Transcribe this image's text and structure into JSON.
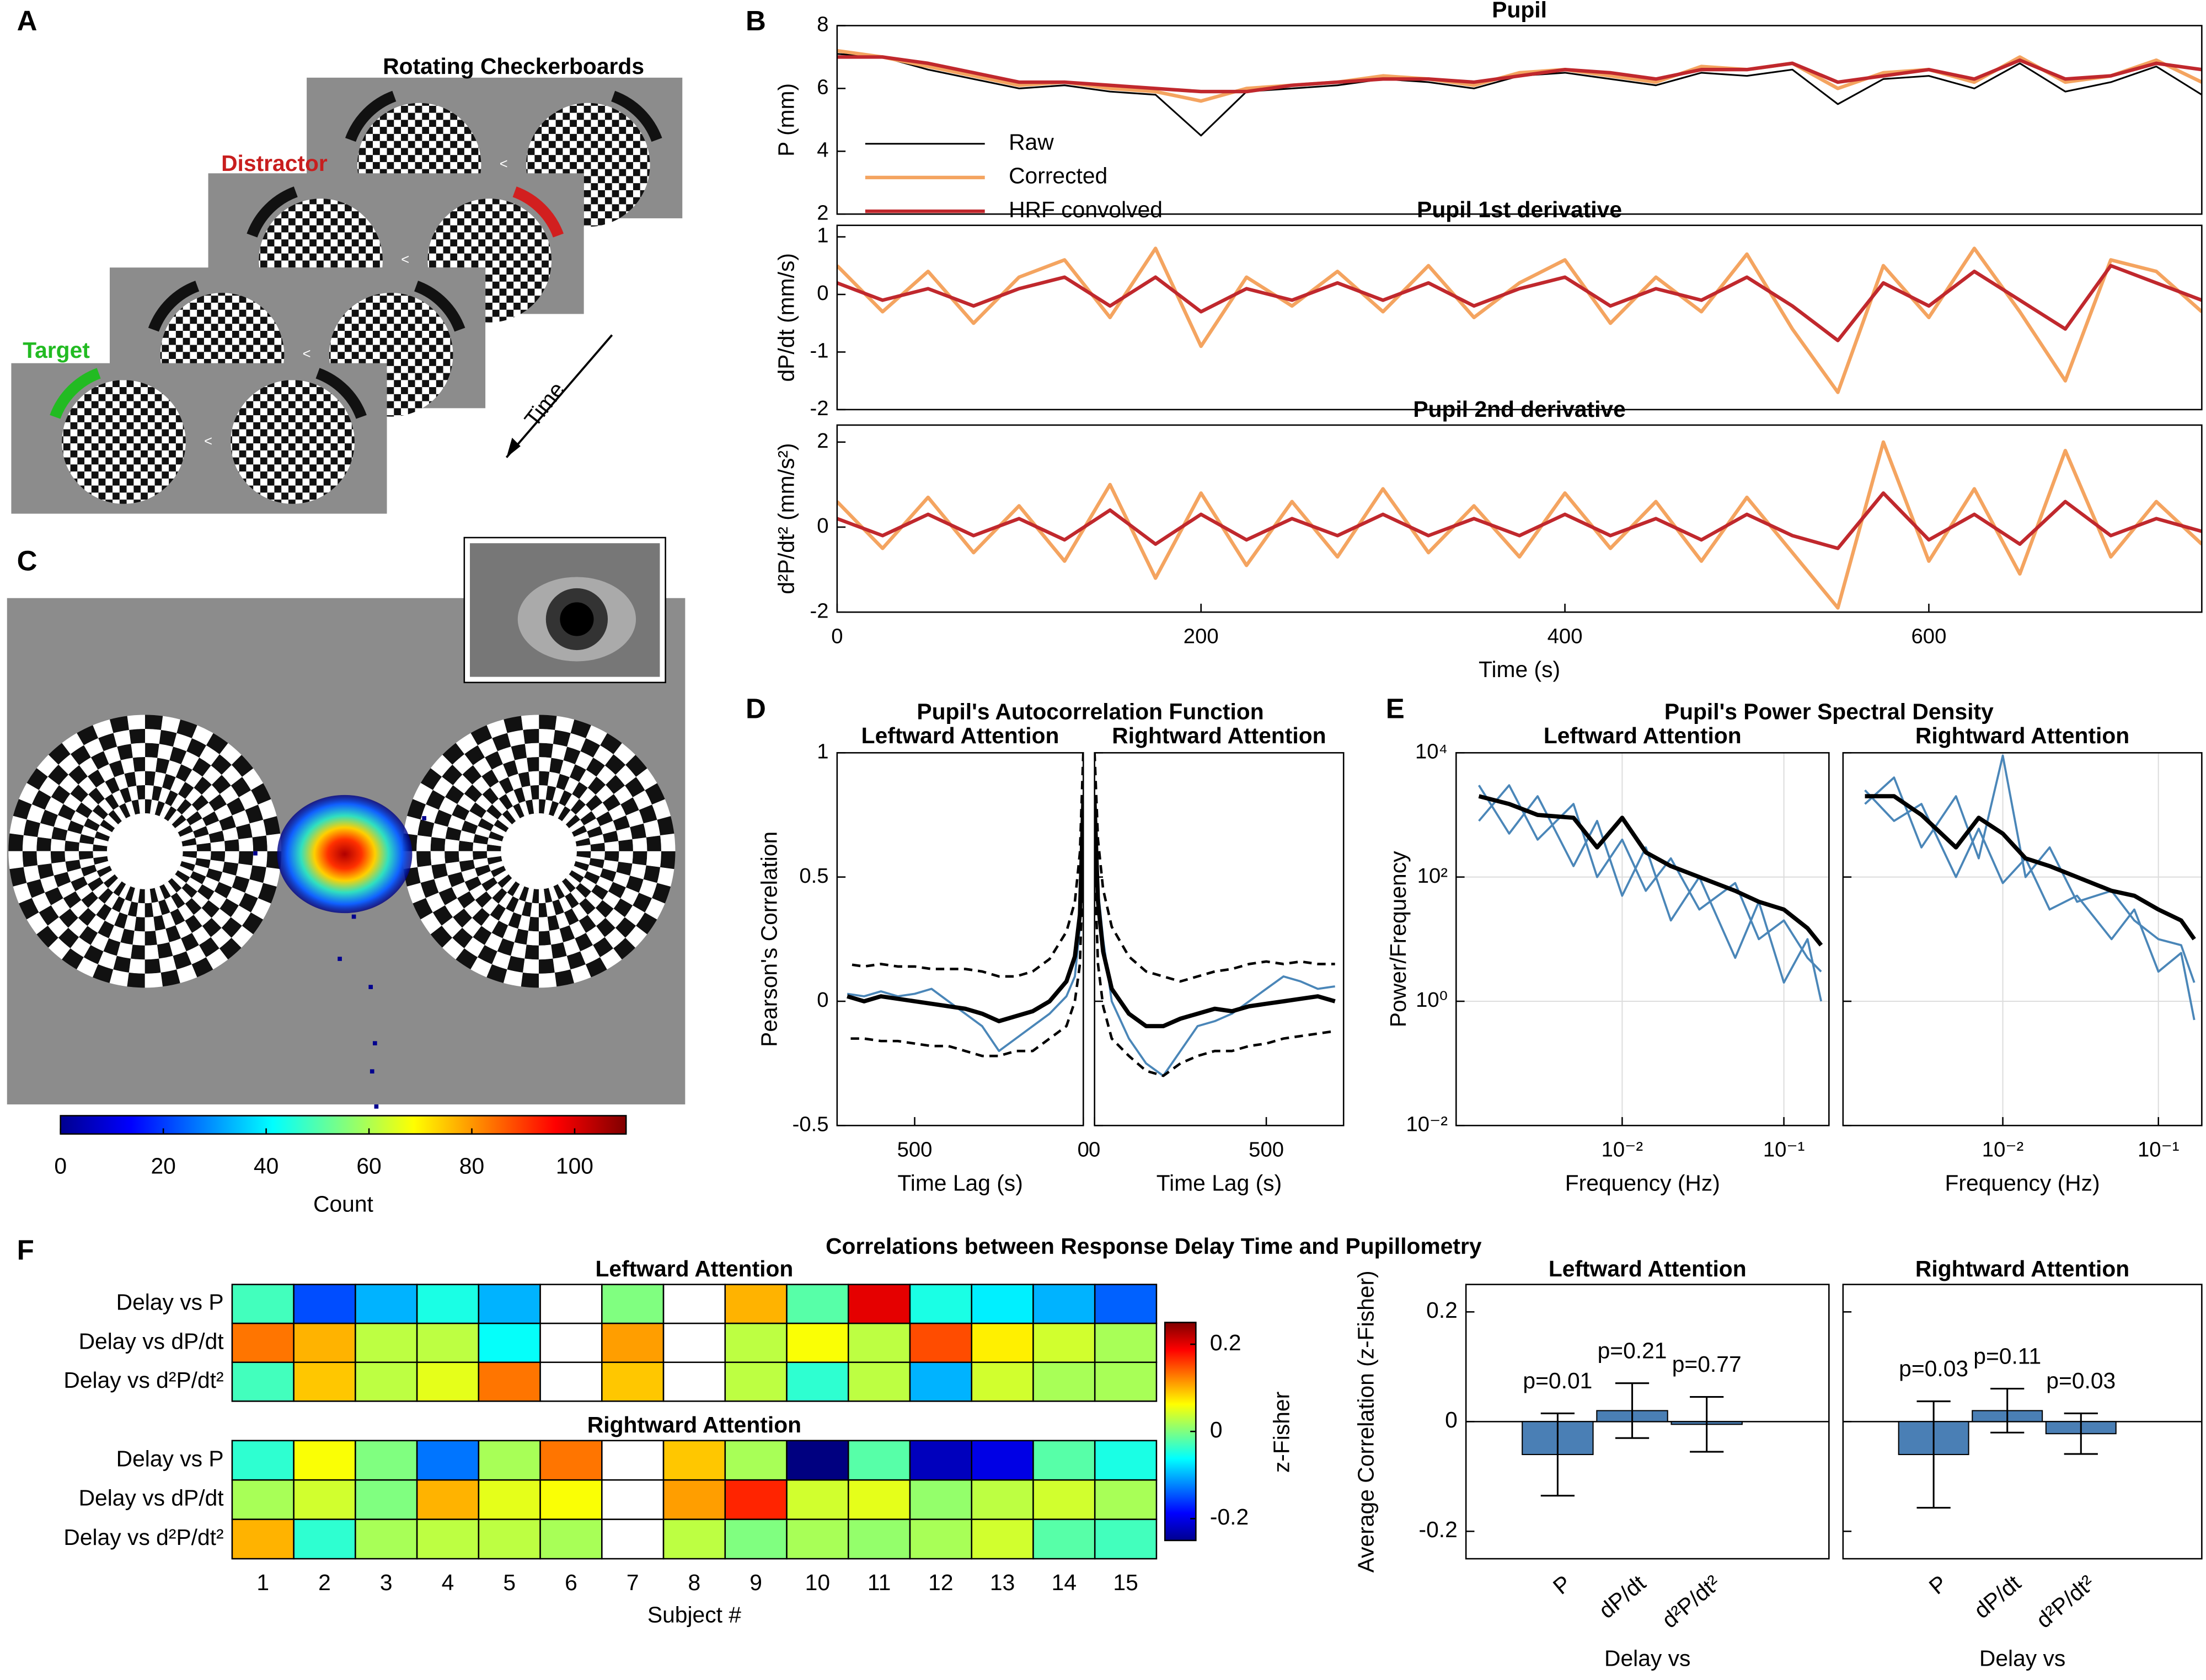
{
  "panel_labels": [
    "A",
    "B",
    "C",
    "D",
    "E",
    "F"
  ],
  "panel_a": {
    "title": "Rotating Checkerboards",
    "distractor": "Distractor",
    "target": "Target",
    "time": "Time"
  },
  "panel_f_title": "Correlations between Response Delay Time and Pupillometry",
  "chart_data": [
    {
      "type": "line",
      "title": "Pupil",
      "ylabel": "P (mm)",
      "xlim": [
        0,
        750
      ],
      "ylim": [
        2,
        8
      ],
      "yticks": [
        2,
        4,
        6,
        8
      ],
      "legend": "lower left",
      "x": [
        0,
        25,
        50,
        75,
        100,
        125,
        150,
        175,
        200,
        225,
        250,
        275,
        300,
        325,
        350,
        375,
        400,
        425,
        450,
        475,
        500,
        525,
        550,
        575,
        600,
        625,
        650,
        675,
        700,
        725,
        750
      ],
      "series": [
        {
          "name": "Raw",
          "color": "#000000",
          "linewidth": 1.2,
          "values": [
            7.1,
            7.0,
            6.6,
            6.3,
            6.0,
            6.1,
            5.9,
            5.8,
            4.5,
            5.9,
            6.0,
            6.1,
            6.3,
            6.2,
            6.0,
            6.4,
            6.5,
            6.3,
            6.1,
            6.5,
            6.4,
            6.6,
            5.5,
            6.3,
            6.4,
            6.0,
            6.8,
            5.9,
            6.2,
            6.7,
            5.8
          ]
        },
        {
          "name": "Corrected",
          "color": "#f4a460",
          "linewidth": 2.5,
          "values": [
            7.2,
            7.0,
            6.7,
            6.4,
            6.1,
            6.2,
            6.0,
            5.9,
            5.6,
            6.0,
            6.1,
            6.2,
            6.4,
            6.3,
            6.1,
            6.5,
            6.6,
            6.4,
            6.2,
            6.7,
            6.6,
            6.8,
            6.0,
            6.5,
            6.6,
            6.2,
            7.0,
            6.2,
            6.4,
            6.9,
            6.2
          ]
        },
        {
          "name": "HRF convolved",
          "color": "#c0282d",
          "linewidth": 2.5,
          "values": [
            7.0,
            7.0,
            6.8,
            6.5,
            6.2,
            6.2,
            6.1,
            6.0,
            5.9,
            5.9,
            6.1,
            6.2,
            6.3,
            6.3,
            6.2,
            6.4,
            6.6,
            6.5,
            6.3,
            6.6,
            6.6,
            6.8,
            6.2,
            6.4,
            6.6,
            6.3,
            6.9,
            6.3,
            6.4,
            6.8,
            6.6
          ]
        }
      ]
    },
    {
      "type": "line",
      "title": "Pupil 1st derivative",
      "ylabel": "dP/dt (mm/s)",
      "xlim": [
        0,
        750
      ],
      "ylim": [
        -2,
        1.2
      ],
      "yticks": [
        -2,
        -1,
        0,
        1
      ],
      "x": [
        0,
        25,
        50,
        75,
        100,
        125,
        150,
        175,
        200,
        225,
        250,
        275,
        300,
        325,
        350,
        375,
        400,
        425,
        450,
        475,
        500,
        525,
        550,
        575,
        600,
        625,
        650,
        675,
        700,
        725,
        750
      ],
      "series": [
        {
          "color": "#f4a460",
          "linewidth": 2.5,
          "values": [
            0.5,
            -0.3,
            0.4,
            -0.5,
            0.3,
            0.6,
            -0.4,
            0.8,
            -0.9,
            0.3,
            -0.2,
            0.4,
            -0.3,
            0.5,
            -0.4,
            0.2,
            0.6,
            -0.5,
            0.3,
            -0.3,
            0.7,
            -0.6,
            -1.7,
            0.5,
            -0.4,
            0.8,
            -0.3,
            -1.5,
            0.6,
            0.4,
            -0.3
          ]
        },
        {
          "color": "#c0282d",
          "linewidth": 2.5,
          "values": [
            0.2,
            -0.1,
            0.1,
            -0.2,
            0.1,
            0.3,
            -0.2,
            0.3,
            -0.3,
            0.1,
            -0.1,
            0.2,
            -0.1,
            0.2,
            -0.2,
            0.1,
            0.3,
            -0.2,
            0.1,
            -0.1,
            0.3,
            -0.2,
            -0.8,
            0.2,
            -0.2,
            0.4,
            -0.1,
            -0.6,
            0.5,
            0.2,
            -0.1
          ]
        }
      ]
    },
    {
      "type": "line",
      "title": "Pupil 2nd derivative",
      "ylabel": "d²P/dt² (mm/s²)",
      "xlabel": "Time (s)",
      "xlim": [
        0,
        750
      ],
      "ylim": [
        -2,
        2.4
      ],
      "yticks": [
        -2,
        0,
        2
      ],
      "xticks": [
        0,
        200,
        400,
        600
      ],
      "x": [
        0,
        25,
        50,
        75,
        100,
        125,
        150,
        175,
        200,
        225,
        250,
        275,
        300,
        325,
        350,
        375,
        400,
        425,
        450,
        475,
        500,
        525,
        550,
        575,
        600,
        625,
        650,
        675,
        700,
        725,
        750
      ],
      "series": [
        {
          "color": "#f4a460",
          "linewidth": 2.5,
          "values": [
            0.6,
            -0.5,
            0.7,
            -0.6,
            0.5,
            -0.8,
            1.0,
            -1.2,
            0.8,
            -0.9,
            0.6,
            -0.7,
            0.9,
            -0.6,
            0.5,
            -0.7,
            0.8,
            -0.5,
            0.6,
            -0.8,
            0.7,
            -0.6,
            -1.9,
            2.0,
            -0.8,
            0.9,
            -1.1,
            1.8,
            -0.7,
            0.6,
            -0.4
          ]
        },
        {
          "color": "#c0282d",
          "linewidth": 2.5,
          "values": [
            0.2,
            -0.2,
            0.3,
            -0.2,
            0.2,
            -0.3,
            0.4,
            -0.4,
            0.3,
            -0.3,
            0.2,
            -0.2,
            0.3,
            -0.2,
            0.2,
            -0.2,
            0.3,
            -0.2,
            0.2,
            -0.3,
            0.3,
            -0.2,
            -0.5,
            0.8,
            -0.3,
            0.3,
            -0.4,
            0.6,
            -0.2,
            0.2,
            -0.1
          ]
        }
      ]
    },
    {
      "type": "line",
      "title": "Pupil's Autocorrelation Function",
      "subtitle": "Leftward Attention",
      "ylabel": "Pearson's Correlation",
      "xlabel": "Time Lag (s)",
      "xlim": [
        730,
        0
      ],
      "ylim": [
        -0.5,
        1
      ],
      "yticks": [
        -0.5,
        0,
        0.5,
        1
      ],
      "xticks": [
        500,
        0
      ],
      "x": [
        0,
        10,
        25,
        50,
        100,
        150,
        200,
        250,
        300,
        350,
        400,
        450,
        500,
        550,
        600,
        650,
        700
      ],
      "series": [
        {
          "color": "#4a86b8",
          "linewidth": 1.5,
          "values": [
            0.7,
            0.3,
            0.1,
            0.02,
            -0.05,
            -0.1,
            -0.15,
            -0.2,
            -0.1,
            -0.05,
            0.0,
            0.05,
            0.03,
            0.02,
            0.04,
            0.02,
            0.03
          ]
        },
        {
          "color": "#000000",
          "linewidth": 1.8,
          "linestyle": "dashed",
          "values": [
            1,
            0.6,
            0.4,
            0.28,
            0.17,
            0.12,
            0.1,
            0.1,
            0.12,
            0.13,
            0.13,
            0.13,
            0.14,
            0.14,
            0.15,
            0.14,
            0.15
          ]
        },
        {
          "color": "#000000",
          "linewidth": 1.8,
          "linestyle": "dashed",
          "values": [
            0.6,
            0.15,
            0.0,
            -0.1,
            -0.15,
            -0.2,
            -0.2,
            -0.22,
            -0.22,
            -0.2,
            -0.18,
            -0.18,
            -0.17,
            -0.16,
            -0.16,
            -0.15,
            -0.15
          ]
        },
        {
          "color": "#000000",
          "linewidth": 3,
          "values": [
            0.8,
            0.35,
            0.18,
            0.08,
            0.0,
            -0.04,
            -0.06,
            -0.08,
            -0.05,
            -0.03,
            -0.02,
            -0.01,
            0.0,
            0.01,
            0.02,
            0.0,
            0.02
          ]
        }
      ]
    },
    {
      "type": "line",
      "subtitle": "Rightward Attention",
      "xlabel": "Time Lag (s)",
      "xlim": [
        0,
        725
      ],
      "ylim": [
        -0.5,
        1
      ],
      "yticks": [
        -0.5,
        0,
        0.5,
        1
      ],
      "xticks": [
        0,
        500
      ],
      "x": [
        0,
        10,
        25,
        50,
        100,
        150,
        200,
        250,
        300,
        350,
        400,
        450,
        500,
        550,
        600,
        650,
        700
      ],
      "series": [
        {
          "color": "#4a86b8",
          "linewidth": 1.5,
          "values": [
            0.75,
            0.45,
            0.25,
            0.0,
            -0.15,
            -0.25,
            -0.3,
            -0.2,
            -0.1,
            -0.08,
            -0.05,
            0.0,
            0.05,
            0.1,
            0.08,
            0.05,
            0.06
          ]
        },
        {
          "color": "#000000",
          "linewidth": 1.8,
          "linestyle": "dashed",
          "values": [
            1,
            0.65,
            0.45,
            0.3,
            0.18,
            0.12,
            0.1,
            0.08,
            0.1,
            0.12,
            0.13,
            0.15,
            0.16,
            0.15,
            0.16,
            0.15,
            0.15
          ]
        },
        {
          "color": "#000000",
          "linewidth": 1.8,
          "linestyle": "dashed",
          "values": [
            0.55,
            0.15,
            -0.02,
            -0.15,
            -0.22,
            -0.28,
            -0.3,
            -0.25,
            -0.22,
            -0.2,
            -0.2,
            -0.18,
            -0.17,
            -0.15,
            -0.14,
            -0.13,
            -0.12
          ]
        },
        {
          "color": "#000000",
          "linewidth": 3,
          "values": [
            0.8,
            0.4,
            0.2,
            0.05,
            -0.05,
            -0.1,
            -0.1,
            -0.07,
            -0.05,
            -0.03,
            -0.04,
            -0.02,
            -0.01,
            0.0,
            0.01,
            0.02,
            0.0
          ]
        }
      ]
    },
    {
      "type": "line",
      "title": "Pupil's Power Spectral Density",
      "subtitle": "Leftward Attention",
      "ylabel": "Power/Frequency",
      "xlabel": "Frequency (Hz)",
      "xlog": true,
      "ylog": true,
      "grid": true,
      "xlim": [
        0.00094,
        0.19
      ],
      "ylim": [
        0.01,
        10000
      ],
      "xticks": [
        {
          "value": 0.01,
          "label": "10⁻²"
        },
        {
          "value": 0.1,
          "label": "10⁻¹"
        }
      ],
      "yticks": [
        {
          "value": 0.01,
          "label": "10⁻²"
        },
        {
          "value": 1,
          "label": "10⁰"
        },
        {
          "value": 100,
          "label": "10²"
        },
        {
          "value": 10000,
          "label": "10⁴"
        }
      ],
      "x": [
        0.0013,
        0.002,
        0.003,
        0.005,
        0.007,
        0.01,
        0.014,
        0.02,
        0.03,
        0.05,
        0.07,
        0.1,
        0.14,
        0.17
      ],
      "series": [
        {
          "color": "#4a86b8",
          "linewidth": 1.5,
          "values": [
            800,
            3000,
            400,
            1500,
            100,
            400,
            60,
            200,
            30,
            80,
            10,
            20,
            5,
            3
          ]
        },
        {
          "color": "#4a86b8",
          "linewidth": 1.5,
          "values": [
            3000,
            500,
            2000,
            150,
            800,
            50,
            300,
            20,
            100,
            5,
            40,
            2,
            10,
            1
          ]
        },
        {
          "color": "#000000",
          "linewidth": 3,
          "values": [
            2000,
            1500,
            1000,
            900,
            300,
            900,
            250,
            150,
            100,
            60,
            40,
            30,
            15,
            8
          ]
        }
      ]
    },
    {
      "type": "line",
      "subtitle": "Rightward Attention",
      "xlabel": "Frequency (Hz)",
      "xlog": true,
      "ylog": true,
      "grid": true,
      "xlim": [
        0.00094,
        0.19
      ],
      "ylim": [
        0.01,
        10000
      ],
      "xticks": [
        {
          "value": 0.01,
          "label": "10⁻²"
        },
        {
          "value": 0.1,
          "label": "10⁻¹"
        }
      ],
      "yticks": [
        0.01,
        1,
        100,
        10000
      ],
      "x": [
        0.0013,
        0.002,
        0.003,
        0.005,
        0.007,
        0.01,
        0.014,
        0.02,
        0.03,
        0.05,
        0.07,
        0.1,
        0.14,
        0.17
      ],
      "series": [
        {
          "color": "#4a86b8",
          "linewidth": 1.5,
          "values": [
            1500,
            4000,
            300,
            2000,
            200,
            9000,
            100,
            300,
            40,
            60,
            20,
            10,
            8,
            2
          ]
        },
        {
          "color": "#4a86b8",
          "linewidth": 1.5,
          "values": [
            2500,
            800,
            1500,
            100,
            600,
            80,
            200,
            30,
            50,
            10,
            30,
            3,
            6,
            0.5
          ]
        },
        {
          "color": "#000000",
          "linewidth": 3,
          "values": [
            2000,
            2000,
            1000,
            300,
            900,
            500,
            200,
            150,
            100,
            60,
            50,
            30,
            20,
            10
          ]
        }
      ]
    },
    {
      "type": "heatmap",
      "rows": [
        "Delay vs P",
        "Delay vs dP/dt",
        "Delay vs d²P/dt²"
      ],
      "categories": [
        "1",
        "2",
        "3",
        "4",
        "5",
        "6",
        "7",
        "8",
        "9",
        "10",
        "11",
        "12",
        "13",
        "14",
        "15"
      ],
      "xlabel": "Subject #",
      "clim": [
        -0.25,
        0.25
      ],
      "cticks": [
        -0.2,
        0,
        0.2
      ],
      "clabel": "z-Fisher",
      "panels": [
        {
          "title": "Leftward Attention",
          "values": [
            [
              -0.03,
              -0.15,
              -0.1,
              -0.05,
              -0.1,
              null,
              0.0,
              null,
              0.1,
              -0.02,
              0.2,
              -0.05,
              -0.07,
              -0.1,
              -0.14
            ],
            [
              0.13,
              0.1,
              0.03,
              0.03,
              -0.06,
              null,
              0.11,
              null,
              0.03,
              0.06,
              0.03,
              0.15,
              0.07,
              0.04,
              0.02
            ],
            [
              -0.03,
              0.09,
              0.03,
              0.05,
              0.13,
              null,
              0.09,
              null,
              0.03,
              -0.04,
              0.03,
              -0.1,
              0.04,
              0.02,
              0.02
            ]
          ]
        },
        {
          "title": "Rightward Attention",
          "values": [
            [
              -0.04,
              0.06,
              0.0,
              -0.13,
              0.02,
              0.13,
              null,
              0.09,
              0.02,
              -0.25,
              -0.02,
              -0.22,
              -0.2,
              -0.02,
              -0.05
            ],
            [
              0.02,
              0.04,
              0.0,
              0.1,
              0.05,
              0.06,
              null,
              0.11,
              0.17,
              0.04,
              0.05,
              0.01,
              0.03,
              0.04,
              0.02
            ],
            [
              0.1,
              -0.04,
              0.02,
              0.03,
              0.03,
              0.02,
              null,
              0.03,
              0.0,
              0.02,
              0.01,
              0.02,
              0.04,
              -0.02,
              -0.03
            ]
          ]
        }
      ]
    },
    {
      "type": "colorbar",
      "xlim": [
        0,
        110
      ],
      "xticks": [
        0,
        20,
        40,
        60,
        80,
        100
      ],
      "xlabel": "Count"
    },
    {
      "type": "bar",
      "title": "Leftward Attention",
      "ylabel": "Average Correlation (z-Fisher)",
      "xlabel": "Delay vs",
      "color": "#4a7fb5",
      "categories": [
        "P",
        "dP/dt",
        "d²P/dt²"
      ],
      "values": [
        -0.06,
        0.02,
        -0.005
      ],
      "error": [
        0.075,
        0.05,
        0.05
      ],
      "annotations": [
        "p=0.01",
        "p=0.21",
        "p=0.77"
      ],
      "ylim": [
        -0.25,
        0.25
      ],
      "yticks": [
        -0.2,
        0,
        0.2
      ]
    },
    {
      "type": "bar",
      "title": "Rightward Attention",
      "xlabel": "Delay vs",
      "color": "#4a7fb5",
      "categories": [
        "P",
        "dP/dt",
        "d²P/dt²"
      ],
      "values": [
        -0.06,
        0.02,
        -0.022
      ],
      "error": [
        0.097,
        0.04,
        0.037
      ],
      "annotations": [
        "p=0.03",
        "p=0.11",
        "p=0.03"
      ],
      "ylim": [
        -0.25,
        0.25
      ],
      "yticks": [
        -0.2,
        0,
        0.2
      ]
    }
  ]
}
